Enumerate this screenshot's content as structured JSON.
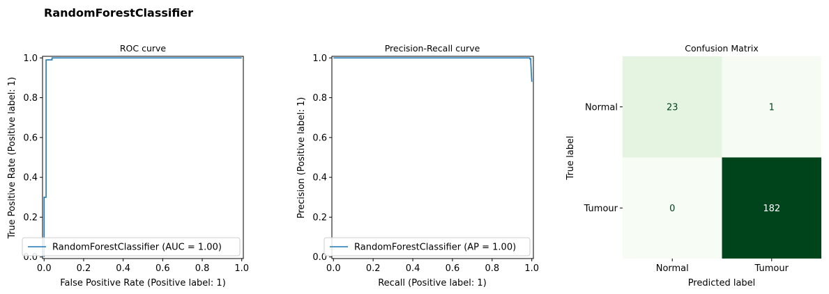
{
  "figure": {
    "title": "RandomForestClassifier"
  },
  "colors": {
    "line": "#1f77b4",
    "cm_low": "#f7fcf5",
    "cm_mid": "#e3f4df",
    "cm_high": "#00441b"
  },
  "chart_data": [
    {
      "type": "line",
      "title": "ROC curve",
      "xlabel": "False Positive Rate (Positive label: 1)",
      "ylabel": "True Positive Rate (Positive label: 1)",
      "xlim": [
        0,
        1
      ],
      "ylim": [
        0,
        1
      ],
      "xticks": [
        "0.0",
        "0.2",
        "0.4",
        "0.6",
        "0.8",
        "1.0"
      ],
      "yticks": [
        "0.0",
        "0.2",
        "0.4",
        "0.6",
        "0.8",
        "1.0"
      ],
      "legend": "lower-right",
      "series": [
        {
          "name": "RandomForestClassifier (AUC = 1.00)",
          "x": [
            0.0,
            0.0,
            0.0,
            0.01,
            0.01,
            0.04,
            0.04,
            1.0
          ],
          "y": [
            0.0,
            0.12,
            0.3,
            0.3,
            0.99,
            0.99,
            1.0,
            1.0
          ]
        }
      ]
    },
    {
      "type": "line",
      "title": "Precision-Recall curve",
      "xlabel": "Recall (Positive label: 1)",
      "ylabel": "Precision (Positive label: 1)",
      "xlim": [
        0,
        1
      ],
      "ylim": [
        0,
        1
      ],
      "xticks": [
        "0.0",
        "0.2",
        "0.4",
        "0.6",
        "0.8",
        "1.0"
      ],
      "yticks": [
        "0.0",
        "0.2",
        "0.4",
        "0.6",
        "0.8",
        "1.0"
      ],
      "legend": "lower-right",
      "series": [
        {
          "name": "RandomForestClassifier (AP = 1.00)",
          "x": [
            0.0,
            0.99,
            0.99,
            0.995,
            0.995,
            1.0
          ],
          "y": [
            1.0,
            1.0,
            0.995,
            0.995,
            0.98,
            0.88
          ]
        }
      ]
    },
    {
      "type": "heatmap",
      "title": "Confusion Matrix",
      "xlabel": "Predicted label",
      "ylabel": "True label",
      "x_categories": [
        "Normal",
        "Tumour"
      ],
      "y_categories": [
        "Normal",
        "Tumour"
      ],
      "values": [
        [
          23,
          1
        ],
        [
          0,
          182
        ]
      ],
      "colormap": "Greens"
    }
  ]
}
